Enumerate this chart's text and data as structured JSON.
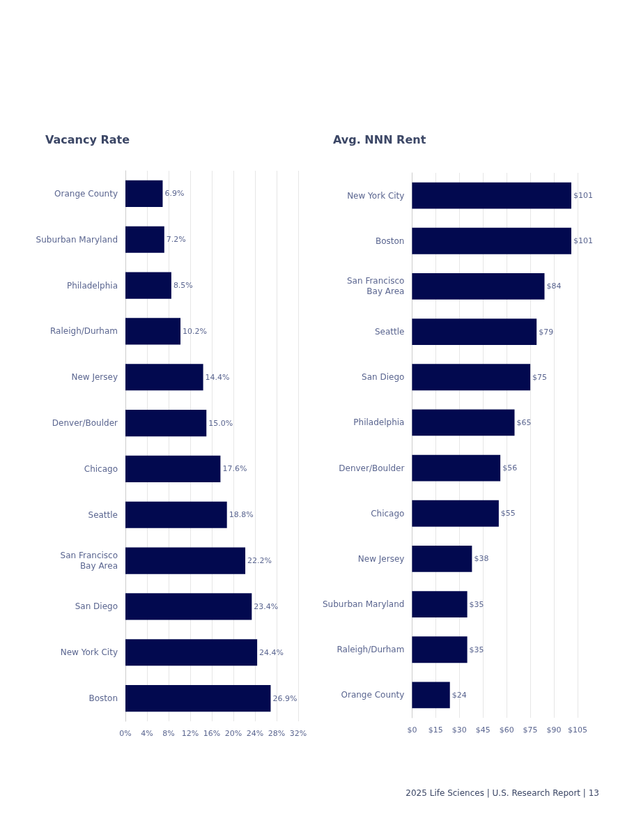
{
  "chart_data": [
    {
      "type": "bar",
      "title": "Vacancy Rate",
      "orientation": "horizontal",
      "color": "#02094f",
      "grid": "x",
      "categories": [
        "Orange County",
        "Suburban Maryland",
        "Philadelphia",
        "Raleigh/Durham",
        "New Jersey",
        "Denver/Boulder",
        "Chicago",
        "Seattle",
        "San Francisco\nBay Area",
        "San Diego",
        "New York City",
        "Boston"
      ],
      "values": [
        6.9,
        7.2,
        8.5,
        10.2,
        14.4,
        15.0,
        17.6,
        18.8,
        22.2,
        23.4,
        24.4,
        26.9
      ],
      "value_labels": [
        "6.9%",
        "7.2%",
        "8.5%",
        "10.2%",
        "14.4%",
        "15.0%",
        "17.6%",
        "18.8%",
        "22.2%",
        "23.4%",
        "24.4%",
        "26.9%"
      ],
      "xlim": [
        0,
        32
      ],
      "xticks": [
        {
          "value": 0,
          "label": "0%"
        },
        {
          "value": 4,
          "label": "4%"
        },
        {
          "value": 8,
          "label": "8%"
        },
        {
          "value": 12,
          "label": "12%"
        },
        {
          "value": 16,
          "label": "16%"
        },
        {
          "value": 20,
          "label": "20%"
        },
        {
          "value": 24,
          "label": "24%"
        },
        {
          "value": 28,
          "label": "28%"
        },
        {
          "value": 32,
          "label": "32%"
        }
      ]
    },
    {
      "type": "bar",
      "title": "Avg. NNN Rent",
      "orientation": "horizontal",
      "color": "#02094f",
      "grid": "x",
      "categories": [
        "New York City",
        "Boston",
        "San Francisco\nBay Area",
        "Seattle",
        "San Diego",
        "Philadelphia",
        "Denver/Boulder",
        "Chicago",
        "New Jersey",
        "Suburban Maryland",
        "Raleigh/Durham",
        "Orange County"
      ],
      "values": [
        101,
        101,
        84,
        79,
        75,
        65,
        56,
        55,
        38,
        35,
        35,
        24
      ],
      "value_labels": [
        "$101",
        "$101",
        "$84",
        "$79",
        "$75",
        "$65",
        "$56",
        "$55",
        "$38",
        "$35",
        "$35",
        "$24"
      ],
      "xlim": [
        0,
        105
      ],
      "xticks": [
        {
          "value": 0,
          "label": "$0"
        },
        {
          "value": 15,
          "label": "$15"
        },
        {
          "value": 30,
          "label": "$30"
        },
        {
          "value": 45,
          "label": "$45"
        },
        {
          "value": 60,
          "label": "$60"
        },
        {
          "value": 75,
          "label": "$75"
        },
        {
          "value": 90,
          "label": "$90"
        },
        {
          "value": 105,
          "label": "$105"
        }
      ],
      "annotations": [
        "2025 Life Sciences | U.S. Research Report | 13"
      ]
    }
  ]
}
